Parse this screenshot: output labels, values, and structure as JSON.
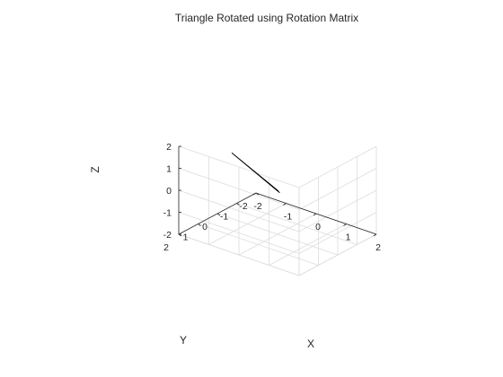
{
  "chart_data": {
    "type": "surface3d",
    "title": "Triangle Rotated using Rotation Matrix",
    "xlabel": "X",
    "ylabel": "Y",
    "zlabel": "Z",
    "xlim": [
      -2,
      2
    ],
    "ylim": [
      -2,
      2
    ],
    "zlim": [
      -2,
      2
    ],
    "xticks": [
      "-2",
      "-1",
      "0",
      "1",
      "2"
    ],
    "yticks": [
      "-2",
      "-1",
      "0",
      "1",
      "2"
    ],
    "zticks": [
      "-2",
      "-1",
      "0",
      "1",
      "2"
    ],
    "grid": true,
    "view": "default 3-D (azimuth -37.5, elevation 30)",
    "triangle": {
      "face_color": "#ff0000",
      "edge_color": "#000000",
      "vertices": [
        {
          "x": -1.0,
          "y": 0.8,
          "z": 1.6
        },
        {
          "x": 0.0,
          "y": 0.0,
          "z": 0.0
        },
        {
          "x": 0.0,
          "y": -0.1,
          "z": -0.15
        }
      ]
    }
  }
}
